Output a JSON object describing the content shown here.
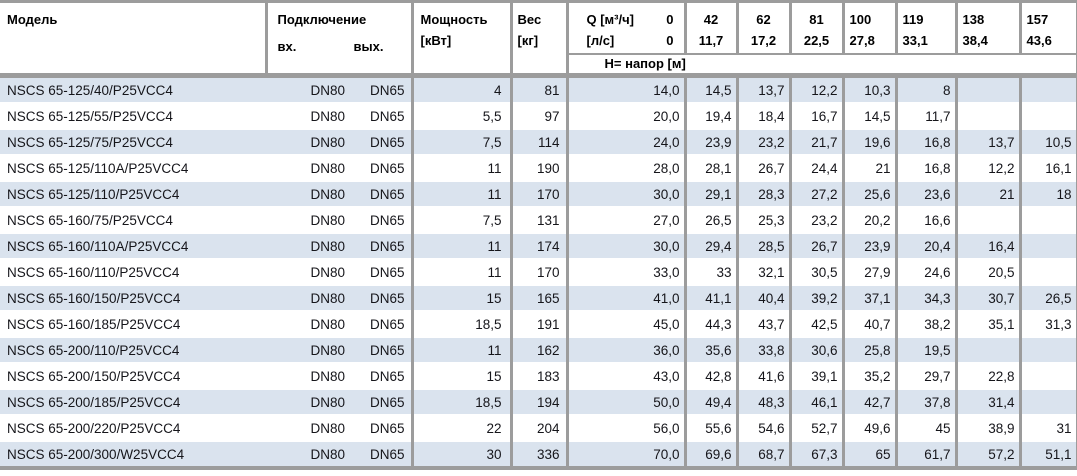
{
  "colors": {
    "row_alt": "#dae3ee",
    "grid": "#9c9c9c",
    "text": "#15151a"
  },
  "table": {
    "header": {
      "model": "Модель",
      "connection": "Подключение",
      "inlet": "вх.",
      "outlet": "вых.",
      "power_l1": "Мощность",
      "power_l2": "[кВт]",
      "weight_l1": "Вес",
      "weight_l2": "[кг]",
      "q_label": "Q [м³/ч]",
      "q_first": "0",
      "ls_label": "[л/с]",
      "ls_first": "0",
      "head_label": "H= напор [м]",
      "flow_cols": [
        {
          "m3h": "42",
          "ls": "11,7"
        },
        {
          "m3h": "62",
          "ls": "17,2"
        },
        {
          "m3h": "81",
          "ls": "22,5"
        },
        {
          "m3h": "100",
          "ls": "27,8"
        },
        {
          "m3h": "119",
          "ls": "33,1"
        },
        {
          "m3h": "138",
          "ls": "38,4"
        },
        {
          "m3h": "157",
          "ls": "43,6"
        }
      ]
    },
    "rows": [
      {
        "model": "NSCS 65-125/40/P25VCC4",
        "inlet": "DN80",
        "outlet": "DN65",
        "power": "4",
        "weight": "81",
        "heads": [
          "14,0",
          "14,5",
          "13,7",
          "12,2",
          "10,3",
          "8",
          "",
          ""
        ]
      },
      {
        "model": "NSCS 65-125/55/P25VCC4",
        "inlet": "DN80",
        "outlet": "DN65",
        "power": "5,5",
        "weight": "97",
        "heads": [
          "20,0",
          "19,4",
          "18,4",
          "16,7",
          "14,5",
          "11,7",
          "",
          ""
        ]
      },
      {
        "model": "NSCS 65-125/75/P25VCC4",
        "inlet": "DN80",
        "outlet": "DN65",
        "power": "7,5",
        "weight": "114",
        "heads": [
          "24,0",
          "23,9",
          "23,2",
          "21,7",
          "19,6",
          "16,8",
          "13,7",
          "10,5"
        ]
      },
      {
        "model": "NSCS 65-125/110A/P25VCC4",
        "inlet": "DN80",
        "outlet": "DN65",
        "power": "11",
        "weight": "190",
        "heads": [
          "28,0",
          "28,1",
          "26,7",
          "24,4",
          "21",
          "16,8",
          "12,2",
          "16,1"
        ]
      },
      {
        "model": "NSCS 65-125/110/P25VCC4",
        "inlet": "DN80",
        "outlet": "DN65",
        "power": "11",
        "weight": "170",
        "heads": [
          "30,0",
          "29,1",
          "28,3",
          "27,2",
          "25,6",
          "23,6",
          "21",
          "18"
        ]
      },
      {
        "model": "NSCS 65-160/75/P25VCC4",
        "inlet": "DN80",
        "outlet": "DN65",
        "power": "7,5",
        "weight": "131",
        "heads": [
          "27,0",
          "26,5",
          "25,3",
          "23,2",
          "20,2",
          "16,6",
          "",
          ""
        ]
      },
      {
        "model": "NSCS 65-160/110A/P25VCC4",
        "inlet": "DN80",
        "outlet": "DN65",
        "power": "11",
        "weight": "174",
        "heads": [
          "30,0",
          "29,4",
          "28,5",
          "26,7",
          "23,9",
          "20,4",
          "16,4",
          ""
        ]
      },
      {
        "model": "NSCS 65-160/110/P25VCC4",
        "inlet": "DN80",
        "outlet": "DN65",
        "power": "11",
        "weight": "170",
        "heads": [
          "33,0",
          "33",
          "32,1",
          "30,5",
          "27,9",
          "24,6",
          "20,5",
          ""
        ]
      },
      {
        "model": "NSCS 65-160/150/P25VCC4",
        "inlet": "DN80",
        "outlet": "DN65",
        "power": "15",
        "weight": "165",
        "heads": [
          "41,0",
          "41,1",
          "40,4",
          "39,2",
          "37,1",
          "34,3",
          "30,7",
          "26,5"
        ]
      },
      {
        "model": "NSCS 65-160/185/P25VCC4",
        "inlet": "DN80",
        "outlet": "DN65",
        "power": "18,5",
        "weight": "191",
        "heads": [
          "45,0",
          "44,3",
          "43,7",
          "42,5",
          "40,7",
          "38,2",
          "35,1",
          "31,3"
        ]
      },
      {
        "model": "NSCS 65-200/110/P25VCC4",
        "inlet": "DN80",
        "outlet": "DN65",
        "power": "11",
        "weight": "162",
        "heads": [
          "36,0",
          "35,6",
          "33,8",
          "30,6",
          "25,8",
          "19,5",
          "",
          ""
        ]
      },
      {
        "model": "NSCS 65-200/150/P25VCC4",
        "inlet": "DN80",
        "outlet": "DN65",
        "power": "15",
        "weight": "183",
        "heads": [
          "43,0",
          "42,8",
          "41,6",
          "39,1",
          "35,2",
          "29,7",
          "22,8",
          ""
        ]
      },
      {
        "model": "NSCS 65-200/185/P25VCC4",
        "inlet": "DN80",
        "outlet": "DN65",
        "power": "18,5",
        "weight": "194",
        "heads": [
          "50,0",
          "49,4",
          "48,3",
          "46,1",
          "42,7",
          "37,8",
          "31,4",
          ""
        ]
      },
      {
        "model": "NSCS 65-200/220/P25VCC4",
        "inlet": "DN80",
        "outlet": "DN65",
        "power": "22",
        "weight": "204",
        "heads": [
          "56,0",
          "55,6",
          "54,6",
          "52,7",
          "49,6",
          "45",
          "38,9",
          "31"
        ]
      },
      {
        "model": "NSCS 65-200/300/W25VCC4",
        "inlet": "DN80",
        "outlet": "DN65",
        "power": "30",
        "weight": "336",
        "heads": [
          "70,0",
          "69,6",
          "68,7",
          "67,3",
          "65",
          "61,7",
          "57,2",
          "51,1"
        ]
      }
    ]
  }
}
